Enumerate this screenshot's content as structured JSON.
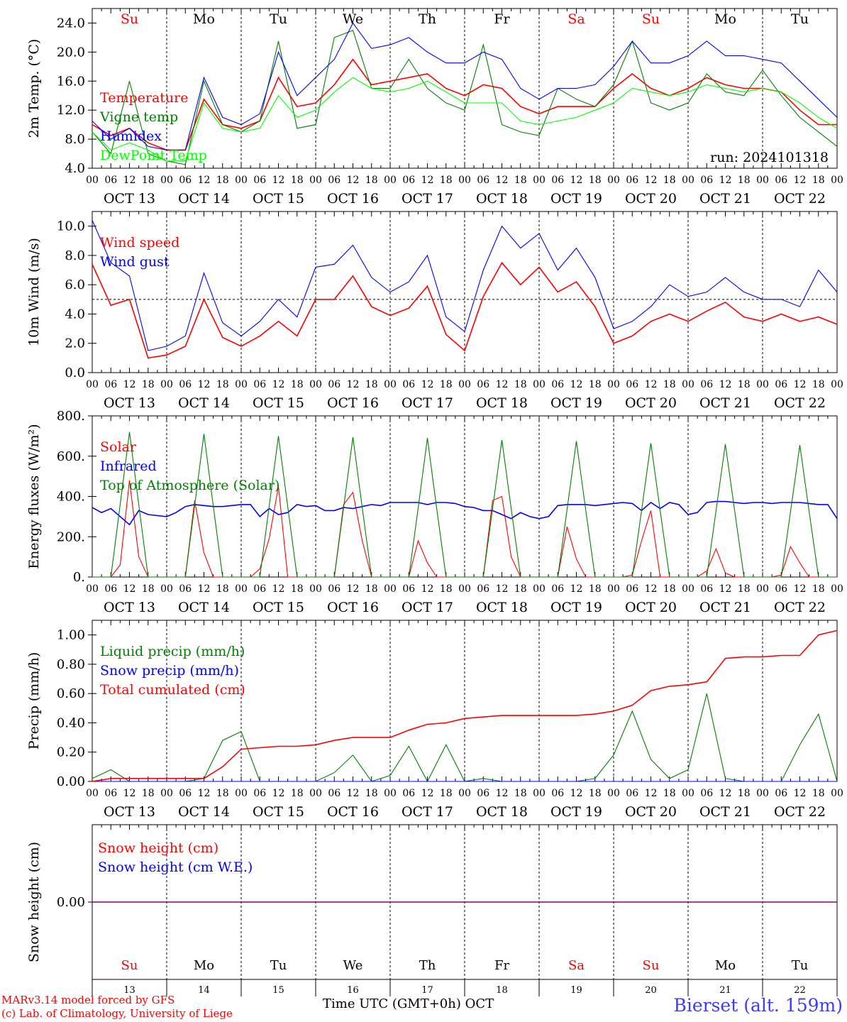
{
  "run_label": "run: 2024101318",
  "weekdays": [
    {
      "label": "Su",
      "color": "#ff0000"
    },
    {
      "label": "Mo",
      "color": "#000000"
    },
    {
      "label": "Tu",
      "color": "#000000"
    },
    {
      "label": "We",
      "color": "#000000"
    },
    {
      "label": "Th",
      "color": "#000000"
    },
    {
      "label": "Fr",
      "color": "#000000"
    },
    {
      "label": "Sa",
      "color": "#ff0000"
    },
    {
      "label": "Su",
      "color": "#ff0000"
    },
    {
      "label": "Mo",
      "color": "#000000"
    },
    {
      "label": "Tu",
      "color": "#000000"
    }
  ],
  "date_labels": [
    "OCT 13",
    "OCT 14",
    "OCT 15",
    "OCT 16",
    "OCT 17",
    "OCT 18",
    "OCT 19",
    "OCT 20",
    "OCT 21",
    "OCT 22"
  ],
  "day_numbers": [
    "13",
    "14",
    "15",
    "16",
    "17",
    "18",
    "19",
    "20",
    "21",
    "22"
  ],
  "hour_ticks": [
    "00",
    "06",
    "12",
    "18"
  ],
  "footer": {
    "credit_line1": "MARv3.14 model forced by GFS",
    "credit_line2": "(c) Lab. of Climatology, University of Liege",
    "xlabel": "Time UTC (GMT+0h) OCT",
    "station": "Bierset (alt. 159m)"
  },
  "chart_data": [
    {
      "type": "line",
      "ylabel": "2m Temp. (°C)",
      "ylim": [
        4,
        26
      ],
      "yticks": [
        "4.0",
        "8.0",
        "12.0",
        "16.0",
        "20.0",
        "24.0"
      ],
      "ytick_values": [
        4,
        8,
        12,
        16,
        20,
        24
      ],
      "x_hours": [
        0,
        6,
        12,
        18,
        24,
        30,
        36,
        42,
        48,
        54,
        60,
        66,
        72,
        78,
        84,
        90,
        96,
        102,
        108,
        114,
        120,
        126,
        132,
        138,
        144,
        150,
        156,
        162,
        168,
        174,
        180,
        186,
        192,
        198,
        204,
        210,
        216,
        222,
        228,
        234,
        240
      ],
      "series": [
        {
          "name": "Temperature",
          "color": "#ff0000",
          "values": [
            10.0,
            8.5,
            9.5,
            7.5,
            6.5,
            6.5,
            13.5,
            10.0,
            9.5,
            10.5,
            16.5,
            12.5,
            13.0,
            15.5,
            19.0,
            15.5,
            16.0,
            16.5,
            17.0,
            15.0,
            14.0,
            15.5,
            15.0,
            12.5,
            11.5,
            12.5,
            12.5,
            12.5,
            15.0,
            17.0,
            15.0,
            14.0,
            15.0,
            16.5,
            15.5,
            15.0,
            15.0,
            14.5,
            12.0,
            10.0,
            10.0
          ]
        },
        {
          "name": "Vigne temp",
          "color": "#008000",
          "values": [
            9.0,
            6.0,
            16.0,
            6.0,
            5.0,
            4.5,
            16.0,
            10.0,
            9.0,
            10.5,
            21.5,
            9.5,
            10.0,
            22.0,
            23.0,
            15.0,
            15.0,
            19.0,
            15.0,
            13.0,
            12.0,
            21.0,
            10.0,
            9.0,
            8.5,
            15.0,
            13.5,
            12.5,
            15.5,
            21.5,
            13.0,
            12.0,
            13.0,
            17.0,
            14.5,
            14.0,
            17.5,
            14.0,
            11.0,
            9.0,
            7.0
          ]
        },
        {
          "name": "Humidex",
          "color": "#0000ff",
          "values": [
            10.5,
            8.0,
            9.5,
            7.0,
            6.5,
            6.5,
            16.5,
            11.0,
            10.0,
            11.5,
            20.0,
            14.0,
            16.5,
            19.0,
            24.0,
            20.5,
            21.0,
            22.0,
            20.0,
            18.5,
            18.5,
            20.0,
            19.0,
            15.0,
            13.5,
            15.0,
            15.0,
            15.5,
            18.0,
            21.5,
            18.5,
            18.5,
            19.5,
            21.5,
            19.5,
            19.5,
            19.0,
            18.5,
            16.0,
            13.5,
            11.0
          ]
        },
        {
          "name": "DewPoint Temp",
          "color": "#00ff00",
          "values": [
            9.0,
            6.5,
            7.5,
            6.5,
            5.0,
            5.0,
            13.0,
            9.5,
            9.0,
            9.5,
            14.0,
            11.0,
            12.0,
            14.5,
            16.5,
            15.0,
            14.5,
            15.0,
            16.0,
            14.5,
            13.0,
            13.0,
            13.0,
            10.5,
            10.0,
            10.5,
            11.0,
            12.0,
            13.0,
            15.0,
            14.5,
            14.0,
            14.5,
            15.5,
            15.0,
            14.5,
            15.0,
            14.5,
            13.0,
            11.0,
            9.5
          ]
        }
      ],
      "annotations": [
        "run: 2024101318"
      ]
    },
    {
      "type": "line",
      "ylabel": "10m Wind (m/s)",
      "ylim": [
        0,
        11
      ],
      "yticks": [
        "0.0",
        "2.0",
        "4.0",
        "6.0",
        "8.0",
        "10.0"
      ],
      "ytick_values": [
        0,
        2,
        4,
        6,
        8,
        10
      ],
      "reference_line": 5.0,
      "x_hours": [
        0,
        6,
        12,
        18,
        24,
        30,
        36,
        42,
        48,
        54,
        60,
        66,
        72,
        78,
        84,
        90,
        96,
        102,
        108,
        114,
        120,
        126,
        132,
        138,
        144,
        150,
        156,
        162,
        168,
        174,
        180,
        186,
        192,
        198,
        204,
        210,
        216,
        222,
        228,
        234,
        240
      ],
      "series": [
        {
          "name": "Wind speed",
          "color": "#ff0000",
          "values": [
            7.4,
            4.6,
            5.0,
            1.0,
            1.2,
            1.8,
            5.0,
            2.4,
            1.8,
            2.5,
            3.5,
            2.5,
            5.0,
            5.0,
            6.6,
            4.5,
            3.9,
            4.4,
            5.9,
            2.6,
            1.5,
            5.2,
            7.5,
            6.0,
            7.2,
            5.5,
            6.2,
            4.5,
            2.0,
            2.5,
            3.5,
            4.0,
            3.5,
            4.2,
            4.8,
            3.8,
            3.5,
            4.0,
            3.5,
            3.8,
            3.3
          ]
        },
        {
          "name": "Wind gust",
          "color": "#0000ff",
          "values": [
            10.4,
            7.5,
            6.6,
            1.5,
            1.8,
            2.5,
            6.8,
            3.4,
            2.5,
            3.5,
            5.0,
            3.8,
            7.2,
            7.4,
            8.7,
            6.5,
            5.5,
            6.2,
            8.0,
            3.8,
            2.8,
            7.0,
            10.0,
            8.5,
            9.5,
            7.0,
            8.5,
            6.5,
            3.0,
            3.5,
            4.5,
            6.0,
            5.2,
            5.5,
            6.5,
            5.5,
            5.0,
            5.0,
            4.5,
            7.0,
            5.5
          ]
        }
      ]
    },
    {
      "type": "line",
      "ylabel": "Energy fluxes (W/m²)",
      "ylim": [
        0,
        800
      ],
      "yticks": [
        "0.",
        "200.",
        "400.",
        "600.",
        "800."
      ],
      "ytick_values": [
        0,
        200,
        400,
        600,
        800
      ],
      "x_hours": [
        0,
        3,
        6,
        9,
        12,
        15,
        18,
        21,
        24,
        27,
        30,
        33,
        36,
        39,
        42,
        45,
        48,
        51,
        54,
        57,
        60,
        63,
        66,
        69,
        72,
        75,
        78,
        81,
        84,
        87,
        90,
        93,
        96,
        99,
        102,
        105,
        108,
        111,
        114,
        117,
        120,
        123,
        126,
        129,
        132,
        135,
        138,
        141,
        144,
        147,
        150,
        153,
        156,
        159,
        162,
        165,
        168,
        171,
        174,
        177,
        180,
        183,
        186,
        189,
        192,
        195,
        198,
        201,
        204,
        207,
        210,
        213,
        216,
        219,
        222,
        225,
        228,
        231,
        234,
        237,
        240
      ],
      "series": [
        {
          "name": "Solar",
          "color": "#ff0000",
          "values": [
            0,
            0,
            0,
            60,
            480,
            100,
            0,
            0,
            0,
            0,
            0,
            380,
            120,
            0,
            0,
            0,
            0,
            0,
            40,
            190,
            450,
            0,
            0,
            0,
            0,
            0,
            0,
            360,
            420,
            180,
            0,
            0,
            0,
            0,
            0,
            180,
            70,
            0,
            0,
            0,
            0,
            0,
            0,
            380,
            400,
            100,
            0,
            0,
            0,
            0,
            0,
            250,
            90,
            0,
            0,
            0,
            0,
            0,
            10,
            180,
            330,
            0,
            0,
            0,
            0,
            0,
            30,
            140,
            20,
            0,
            0,
            0,
            0,
            0,
            10,
            150,
            70,
            0,
            0,
            0,
            0
          ]
        },
        {
          "name": "Infrared",
          "color": "#0000ff",
          "values": [
            345,
            320,
            340,
            300,
            260,
            330,
            310,
            305,
            300,
            320,
            350,
            360,
            355,
            350,
            350,
            355,
            360,
            360,
            300,
            340,
            310,
            320,
            360,
            350,
            355,
            330,
            330,
            345,
            340,
            350,
            360,
            355,
            370,
            370,
            370,
            370,
            360,
            370,
            370,
            365,
            350,
            345,
            330,
            330,
            310,
            290,
            320,
            300,
            290,
            300,
            355,
            360,
            360,
            360,
            355,
            360,
            365,
            370,
            365,
            330,
            370,
            340,
            370,
            360,
            310,
            320,
            370,
            375,
            375,
            370,
            365,
            370,
            370,
            365,
            370,
            370,
            370,
            365,
            360,
            360,
            290
          ]
        },
        {
          "name": "Top of Atmosphere (Solar)",
          "color": "#008000",
          "values": [
            0,
            0,
            0,
            360,
            720,
            360,
            0,
            0,
            0,
            0,
            0,
            355,
            710,
            355,
            0,
            0,
            0,
            0,
            0,
            350,
            700,
            350,
            0,
            0,
            0,
            0,
            0,
            345,
            695,
            345,
            0,
            0,
            0,
            0,
            0,
            340,
            690,
            340,
            0,
            0,
            0,
            0,
            0,
            340,
            680,
            340,
            0,
            0,
            0,
            0,
            0,
            335,
            675,
            335,
            0,
            0,
            0,
            0,
            0,
            330,
            665,
            330,
            0,
            0,
            0,
            0,
            0,
            330,
            660,
            330,
            0,
            0,
            0,
            0,
            0,
            325,
            655,
            325,
            0,
            0,
            0
          ]
        }
      ]
    },
    {
      "type": "line",
      "ylabel": "Precip (mm/h)",
      "ylim": [
        0,
        1.1
      ],
      "yticks": [
        "0.00",
        "0.20",
        "0.40",
        "0.60",
        "0.80",
        "1.00"
      ],
      "ytick_values": [
        0,
        0.2,
        0.4,
        0.6,
        0.8,
        1.0
      ],
      "x_hours": [
        0,
        6,
        12,
        18,
        24,
        30,
        36,
        42,
        48,
        54,
        60,
        66,
        72,
        78,
        84,
        90,
        96,
        102,
        108,
        114,
        120,
        126,
        132,
        138,
        144,
        150,
        156,
        162,
        168,
        174,
        180,
        186,
        192,
        198,
        204,
        210,
        216,
        222,
        228,
        234,
        240
      ],
      "series": [
        {
          "name": "Liquid precip (mm/h)",
          "color": "#008000",
          "values": [
            0.02,
            0.08,
            0.0,
            0.0,
            0.0,
            0.0,
            0.02,
            0.28,
            0.34,
            0.0,
            0.0,
            0.0,
            0.0,
            0.06,
            0.18,
            0.0,
            0.04,
            0.24,
            0.0,
            0.25,
            0.0,
            0.02,
            0.0,
            0.0,
            0.0,
            0.0,
            0.0,
            0.02,
            0.18,
            0.48,
            0.15,
            0.02,
            0.08,
            0.6,
            0.02,
            0.0,
            0.0,
            0.0,
            0.25,
            0.46,
            0.0
          ]
        },
        {
          "name": "Snow precip (mm/h)",
          "color": "#0000ff",
          "values": [
            0,
            0,
            0,
            0,
            0,
            0,
            0,
            0,
            0,
            0,
            0,
            0,
            0,
            0,
            0,
            0,
            0,
            0,
            0,
            0,
            0,
            0,
            0,
            0,
            0,
            0,
            0,
            0,
            0,
            0,
            0,
            0,
            0,
            0,
            0,
            0,
            0,
            0,
            0,
            0,
            0
          ]
        },
        {
          "name": "Total cumulated (cm)",
          "color": "#ff0000",
          "values": [
            0.0,
            0.02,
            0.02,
            0.02,
            0.02,
            0.02,
            0.02,
            0.1,
            0.22,
            0.23,
            0.24,
            0.24,
            0.25,
            0.28,
            0.3,
            0.3,
            0.3,
            0.35,
            0.39,
            0.4,
            0.43,
            0.44,
            0.45,
            0.45,
            0.45,
            0.45,
            0.45,
            0.46,
            0.48,
            0.52,
            0.62,
            0.65,
            0.66,
            0.68,
            0.84,
            0.85,
            0.85,
            0.86,
            0.86,
            1.0,
            1.03
          ]
        }
      ]
    },
    {
      "type": "line",
      "ylabel": "Snow height (cm)",
      "yticks": [
        "0.00"
      ],
      "ytick_values": [
        0
      ],
      "ylim": [
        -1,
        1
      ],
      "x_hours": [
        0,
        240
      ],
      "series": [
        {
          "name": "Snow height (cm)",
          "color": "#ff0000",
          "values": [
            0,
            0
          ]
        },
        {
          "name": "Snow height (cm W.E.)",
          "color": "#0000ff",
          "values": [
            0,
            0
          ]
        }
      ]
    }
  ]
}
